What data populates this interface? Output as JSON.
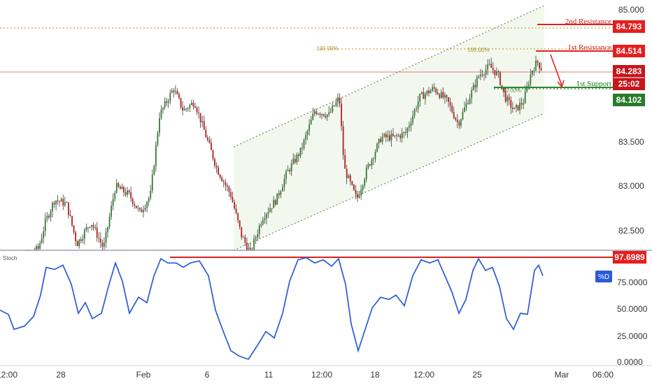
{
  "chart_data": [
    {
      "type": "candlestick",
      "title": "",
      "y_ticks": [
        "85.000",
        "83.500",
        "83.000",
        "82.500"
      ],
      "ylim": [
        82.15,
        85.15
      ],
      "x_ticks": [
        "12:00",
        "28",
        "Feb",
        "6",
        "11",
        "12:00",
        "18",
        "12:00",
        "25",
        "Mar",
        "06:00"
      ],
      "price_path": [
        {
          "x": 0,
          "y": 82.22
        },
        {
          "x": 15,
          "y": 82.1
        },
        {
          "x": 55,
          "y": 82.3
        },
        {
          "x": 65,
          "y": 82.6
        },
        {
          "x": 78,
          "y": 82.85
        },
        {
          "x": 95,
          "y": 82.8
        },
        {
          "x": 110,
          "y": 82.35
        },
        {
          "x": 130,
          "y": 82.6
        },
        {
          "x": 148,
          "y": 82.3
        },
        {
          "x": 165,
          "y": 83.0
        },
        {
          "x": 185,
          "y": 82.9
        },
        {
          "x": 200,
          "y": 82.7
        },
        {
          "x": 215,
          "y": 82.9
        },
        {
          "x": 228,
          "y": 83.8
        },
        {
          "x": 248,
          "y": 84.1
        },
        {
          "x": 262,
          "y": 83.85
        },
        {
          "x": 278,
          "y": 83.95
        },
        {
          "x": 295,
          "y": 83.55
        },
        {
          "x": 310,
          "y": 83.2
        },
        {
          "x": 330,
          "y": 82.9
        },
        {
          "x": 345,
          "y": 82.45
        },
        {
          "x": 358,
          "y": 82.25
        },
        {
          "x": 375,
          "y": 82.65
        },
        {
          "x": 395,
          "y": 82.85
        },
        {
          "x": 410,
          "y": 83.15
        },
        {
          "x": 430,
          "y": 83.4
        },
        {
          "x": 450,
          "y": 83.85
        },
        {
          "x": 470,
          "y": 83.8
        },
        {
          "x": 485,
          "y": 84.0
        },
        {
          "x": 492,
          "y": 83.2
        },
        {
          "x": 510,
          "y": 82.85
        },
        {
          "x": 525,
          "y": 83.2
        },
        {
          "x": 545,
          "y": 83.55
        },
        {
          "x": 565,
          "y": 83.55
        },
        {
          "x": 580,
          "y": 83.6
        },
        {
          "x": 600,
          "y": 84.0
        },
        {
          "x": 620,
          "y": 84.1
        },
        {
          "x": 640,
          "y": 83.95
        },
        {
          "x": 655,
          "y": 83.7
        },
        {
          "x": 668,
          "y": 83.95
        },
        {
          "x": 685,
          "y": 84.25
        },
        {
          "x": 700,
          "y": 84.35
        },
        {
          "x": 712,
          "y": 84.25
        },
        {
          "x": 722,
          "y": 84.0
        },
        {
          "x": 735,
          "y": 83.85
        },
        {
          "x": 748,
          "y": 83.95
        },
        {
          "x": 760,
          "y": 84.3
        },
        {
          "x": 768,
          "y": 84.4
        },
        {
          "x": 776,
          "y": 84.3
        }
      ],
      "levels": {
        "second_resistance": {
          "label": "2nd Resistance",
          "value": "84.793"
        },
        "first_resistance": {
          "label": "1st Resistance",
          "value": "84.514"
        },
        "current_price": {
          "value": "84.283",
          "countdown": "25:02"
        },
        "first_support": {
          "label": "1st Support",
          "value": "84.102"
        }
      },
      "fib_labels": [
        "100.00%",
        "100.00%",
        "50.00%"
      ]
    },
    {
      "type": "line",
      "indicator": "Stoch",
      "series_label": "%D",
      "y_ticks": [
        "75.0000",
        "50.0000",
        "25.0000",
        "0.0000"
      ],
      "ylim": [
        0,
        100
      ],
      "level": "97.6989",
      "points": [
        {
          "x": 0,
          "y": 48
        },
        {
          "x": 12,
          "y": 44
        },
        {
          "x": 20,
          "y": 30
        },
        {
          "x": 35,
          "y": 33
        },
        {
          "x": 48,
          "y": 42
        },
        {
          "x": 58,
          "y": 62
        },
        {
          "x": 66,
          "y": 88
        },
        {
          "x": 78,
          "y": 86
        },
        {
          "x": 90,
          "y": 90
        },
        {
          "x": 102,
          "y": 72
        },
        {
          "x": 112,
          "y": 45
        },
        {
          "x": 122,
          "y": 55
        },
        {
          "x": 132,
          "y": 40
        },
        {
          "x": 145,
          "y": 45
        },
        {
          "x": 155,
          "y": 70
        },
        {
          "x": 165,
          "y": 92
        },
        {
          "x": 175,
          "y": 75
        },
        {
          "x": 185,
          "y": 45
        },
        {
          "x": 198,
          "y": 60
        },
        {
          "x": 210,
          "y": 55
        },
        {
          "x": 220,
          "y": 80
        },
        {
          "x": 230,
          "y": 96
        },
        {
          "x": 240,
          "y": 92
        },
        {
          "x": 252,
          "y": 92
        },
        {
          "x": 262,
          "y": 88
        },
        {
          "x": 272,
          "y": 92
        },
        {
          "x": 285,
          "y": 94
        },
        {
          "x": 298,
          "y": 80
        },
        {
          "x": 308,
          "y": 48
        },
        {
          "x": 318,
          "y": 30
        },
        {
          "x": 330,
          "y": 10
        },
        {
          "x": 342,
          "y": 5
        },
        {
          "x": 355,
          "y": 2
        },
        {
          "x": 368,
          "y": 15
        },
        {
          "x": 380,
          "y": 28
        },
        {
          "x": 392,
          "y": 22
        },
        {
          "x": 404,
          "y": 45
        },
        {
          "x": 414,
          "y": 75
        },
        {
          "x": 426,
          "y": 95
        },
        {
          "x": 438,
          "y": 97
        },
        {
          "x": 450,
          "y": 92
        },
        {
          "x": 462,
          "y": 95
        },
        {
          "x": 474,
          "y": 89
        },
        {
          "x": 484,
          "y": 96
        },
        {
          "x": 494,
          "y": 72
        },
        {
          "x": 502,
          "y": 35
        },
        {
          "x": 512,
          "y": 10
        },
        {
          "x": 522,
          "y": 30
        },
        {
          "x": 532,
          "y": 50
        },
        {
          "x": 544,
          "y": 60
        },
        {
          "x": 556,
          "y": 58
        },
        {
          "x": 566,
          "y": 62
        },
        {
          "x": 578,
          "y": 52
        },
        {
          "x": 590,
          "y": 80
        },
        {
          "x": 602,
          "y": 95
        },
        {
          "x": 614,
          "y": 92
        },
        {
          "x": 626,
          "y": 95
        },
        {
          "x": 636,
          "y": 80
        },
        {
          "x": 646,
          "y": 65
        },
        {
          "x": 656,
          "y": 45
        },
        {
          "x": 666,
          "y": 58
        },
        {
          "x": 676,
          "y": 85
        },
        {
          "x": 684,
          "y": 96
        },
        {
          "x": 694,
          "y": 85
        },
        {
          "x": 704,
          "y": 88
        },
        {
          "x": 714,
          "y": 70
        },
        {
          "x": 724,
          "y": 40
        },
        {
          "x": 734,
          "y": 30
        },
        {
          "x": 744,
          "y": 45
        },
        {
          "x": 754,
          "y": 44
        },
        {
          "x": 764,
          "y": 85
        },
        {
          "x": 770,
          "y": 90
        },
        {
          "x": 776,
          "y": 80
        }
      ]
    }
  ]
}
